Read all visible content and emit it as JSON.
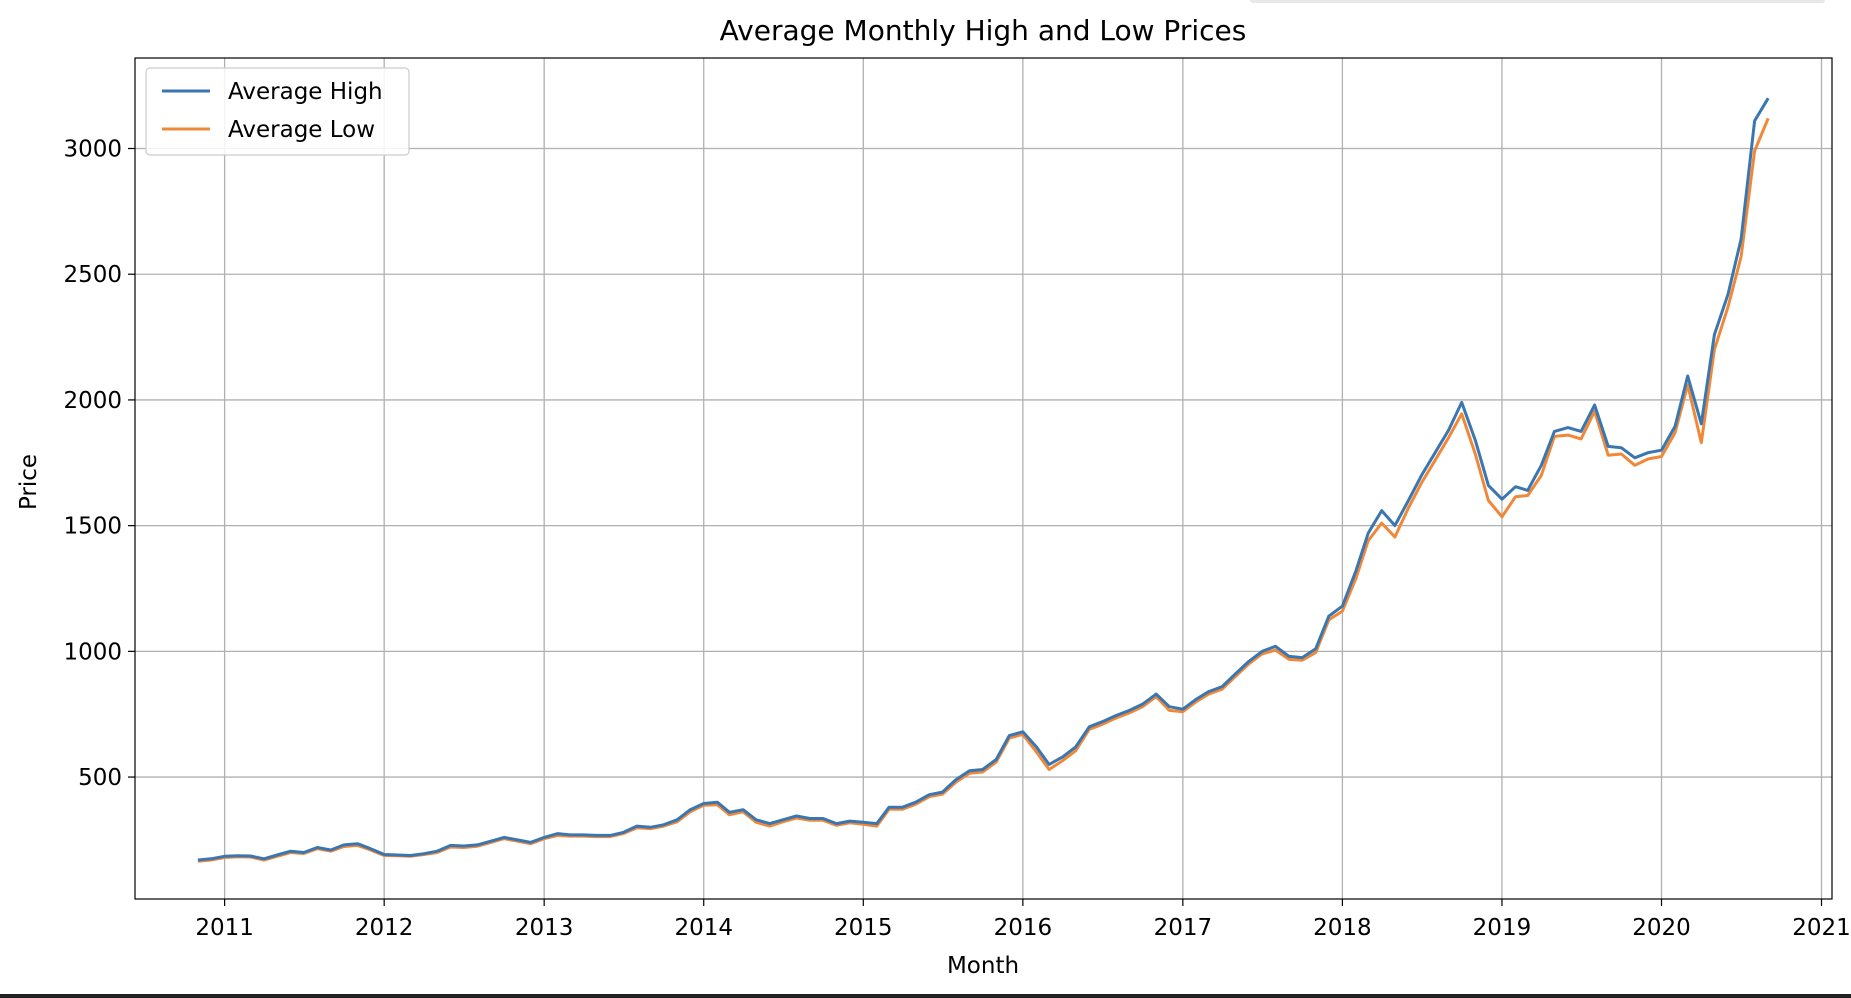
{
  "chart_data": {
    "type": "line",
    "title": "Average Monthly High and Low Prices",
    "xlabel": "Month",
    "ylabel": "Price",
    "x_ticks": [
      "2011",
      "2012",
      "2013",
      "2014",
      "2015",
      "2016",
      "2017",
      "2018",
      "2019",
      "2020",
      "2021"
    ],
    "y_ticks": [
      500,
      1000,
      1500,
      2000,
      2500,
      3000
    ],
    "xlim": [
      "2010-06-10",
      "2021-01-25"
    ],
    "ylim": [
      15,
      3360
    ],
    "grid": true,
    "legend": "top-left",
    "colors": {
      "high": "#3a76b0",
      "low": "#f0883a",
      "grid": "#b0b0b0",
      "axis": "#000000"
    },
    "x": [
      "2010-11",
      "2010-12",
      "2011-01",
      "2011-02",
      "2011-03",
      "2011-04",
      "2011-05",
      "2011-06",
      "2011-07",
      "2011-08",
      "2011-09",
      "2011-10",
      "2011-11",
      "2011-12",
      "2012-01",
      "2012-02",
      "2012-03",
      "2012-04",
      "2012-05",
      "2012-06",
      "2012-07",
      "2012-08",
      "2012-09",
      "2012-10",
      "2012-11",
      "2012-12",
      "2013-01",
      "2013-02",
      "2013-03",
      "2013-04",
      "2013-05",
      "2013-06",
      "2013-07",
      "2013-08",
      "2013-09",
      "2013-10",
      "2013-11",
      "2013-12",
      "2014-01",
      "2014-02",
      "2014-03",
      "2014-04",
      "2014-05",
      "2014-06",
      "2014-07",
      "2014-08",
      "2014-09",
      "2014-10",
      "2014-11",
      "2014-12",
      "2015-01",
      "2015-02",
      "2015-03",
      "2015-04",
      "2015-05",
      "2015-06",
      "2015-07",
      "2015-08",
      "2015-09",
      "2015-10",
      "2015-11",
      "2015-12",
      "2016-01",
      "2016-02",
      "2016-03",
      "2016-04",
      "2016-05",
      "2016-06",
      "2016-07",
      "2016-08",
      "2016-09",
      "2016-10",
      "2016-11",
      "2016-12",
      "2017-01",
      "2017-02",
      "2017-03",
      "2017-04",
      "2017-05",
      "2017-06",
      "2017-07",
      "2017-08",
      "2017-09",
      "2017-10",
      "2017-11",
      "2017-12",
      "2018-01",
      "2018-02",
      "2018-03",
      "2018-04",
      "2018-05",
      "2018-06",
      "2018-07",
      "2018-08",
      "2018-09",
      "2018-10",
      "2018-11",
      "2018-12",
      "2019-01",
      "2019-02",
      "2019-03",
      "2019-04",
      "2019-05",
      "2019-06",
      "2019-07",
      "2019-08",
      "2019-09",
      "2019-10",
      "2019-11",
      "2019-12",
      "2020-01",
      "2020-02",
      "2020-03",
      "2020-04",
      "2020-05",
      "2020-06",
      "2020-07",
      "2020-08",
      "2020-09"
    ],
    "series": [
      {
        "name": "Average High",
        "values": [
          170,
          175,
          185,
          187,
          186,
          175,
          190,
          205,
          200,
          220,
          210,
          230,
          235,
          215,
          192,
          190,
          188,
          195,
          205,
          228,
          226,
          230,
          245,
          260,
          250,
          240,
          260,
          275,
          270,
          270,
          268,
          268,
          280,
          305,
          300,
          310,
          330,
          370,
          395,
          400,
          360,
          370,
          330,
          315,
          330,
          345,
          335,
          335,
          315,
          325,
          320,
          315,
          380,
          380,
          400,
          430,
          440,
          490,
          525,
          530,
          570,
          665,
          680,
          620,
          550,
          580,
          620,
          700,
          720,
          745,
          765,
          790,
          830,
          780,
          770,
          810,
          840,
          860,
          910,
          960,
          1000,
          1020,
          980,
          975,
          1010,
          1140,
          1180,
          1320,
          1470,
          1560,
          1500,
          1600,
          1700,
          1790,
          1880,
          1990,
          1840,
          1660,
          1605,
          1655,
          1640,
          1740,
          1875,
          1890,
          1875,
          1980,
          1815,
          1810,
          1770,
          1790,
          1800,
          1895,
          2095,
          1905,
          2260,
          2420,
          2640,
          3110,
          3200
        ]
      },
      {
        "name": "Average Low",
        "values": [
          165,
          170,
          180,
          183,
          182,
          170,
          185,
          200,
          196,
          215,
          205,
          224,
          228,
          210,
          188,
          187,
          185,
          192,
          200,
          222,
          220,
          225,
          240,
          255,
          245,
          235,
          255,
          268,
          265,
          265,
          263,
          263,
          275,
          298,
          295,
          305,
          322,
          362,
          388,
          390,
          350,
          362,
          320,
          305,
          322,
          337,
          328,
          328,
          308,
          318,
          312,
          305,
          372,
          372,
          392,
          422,
          432,
          480,
          515,
          520,
          560,
          655,
          670,
          600,
          530,
          565,
          605,
          690,
          710,
          735,
          755,
          780,
          820,
          765,
          760,
          800,
          830,
          850,
          900,
          950,
          990,
          1005,
          968,
          965,
          995,
          1125,
          1160,
          1290,
          1440,
          1510,
          1455,
          1570,
          1670,
          1760,
          1850,
          1945,
          1785,
          1600,
          1535,
          1615,
          1620,
          1700,
          1855,
          1860,
          1845,
          1955,
          1780,
          1785,
          1740,
          1765,
          1775,
          1870,
          2060,
          1830,
          2200,
          2370,
          2570,
          2990,
          3120
        ]
      }
    ]
  }
}
